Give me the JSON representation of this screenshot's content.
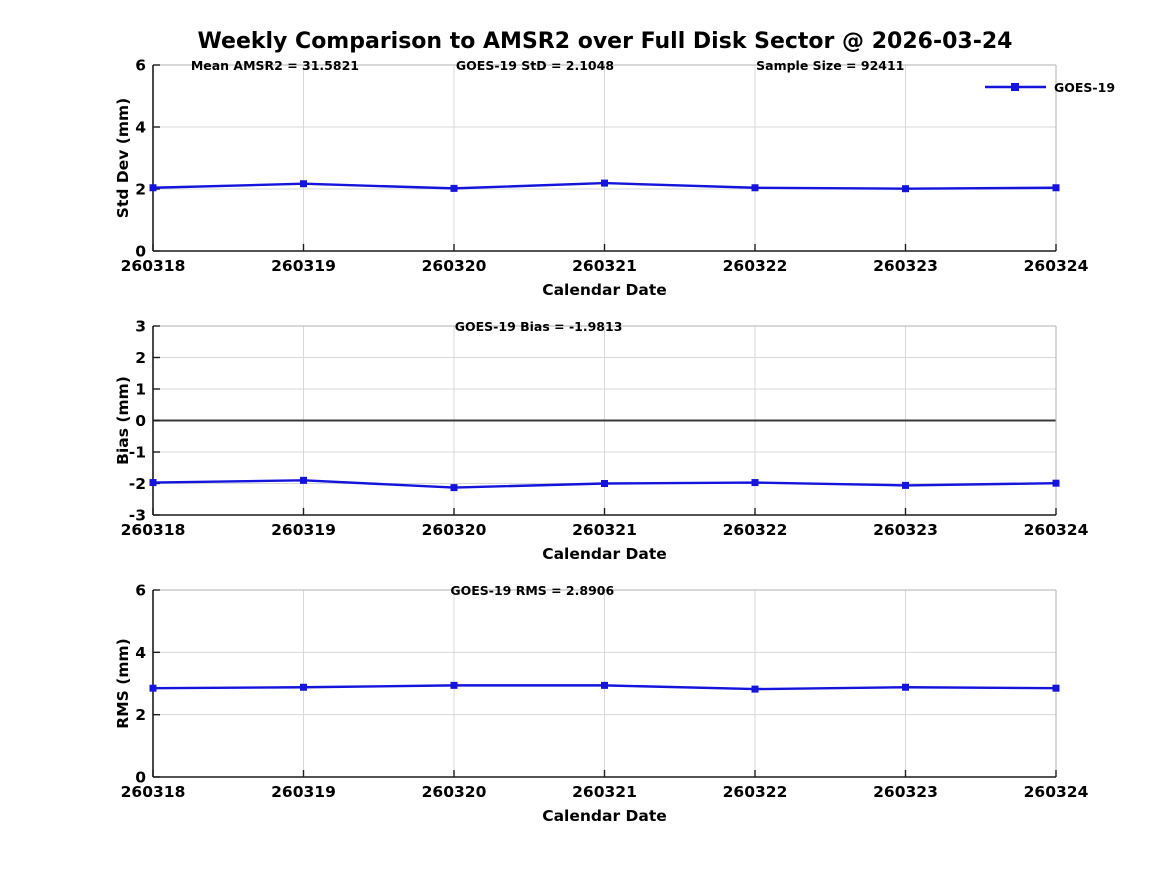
{
  "title": "Weekly Comparison to AMSR2 over Full Disk Sector @ 2026-03-24",
  "colors": {
    "series": "#1414dd",
    "grid": "#d8d8d8",
    "axis": "#1c1c1c",
    "box": "#b0b0b0",
    "zero_line": "#3a3a3a",
    "text": "#000000",
    "background": "#ffffff"
  },
  "chart_data": [
    {
      "type": "line",
      "name": "std-dev",
      "x": [
        "260318",
        "260319",
        "260320",
        "260321",
        "260322",
        "260323",
        "260324"
      ],
      "series": [
        {
          "name": "GOES-19",
          "values": [
            2.04,
            2.17,
            2.02,
            2.19,
            2.04,
            2.01,
            2.04
          ]
        }
      ],
      "xlabel": "Calendar Date",
      "ylabel": "Std Dev (mm)",
      "ylim": [
        0,
        6
      ],
      "yticks": [
        0,
        2,
        4,
        6
      ],
      "grid": true,
      "zero_line": false,
      "annotations": [
        {
          "text": "Mean AMSR2 = 31.5821",
          "fx": 0.135
        },
        {
          "text": "GOES-19 StD = 2.1048",
          "fx": 0.423
        },
        {
          "text": "Sample Size = 92411",
          "fx": 0.75
        }
      ],
      "legend": {
        "label": "GOES-19",
        "position": "top-right"
      }
    },
    {
      "type": "line",
      "name": "bias",
      "x": [
        "260318",
        "260319",
        "260320",
        "260321",
        "260322",
        "260323",
        "260324"
      ],
      "series": [
        {
          "name": "GOES-19",
          "values": [
            -1.97,
            -1.9,
            -2.13,
            -2.0,
            -1.97,
            -2.06,
            -1.99
          ]
        }
      ],
      "xlabel": "Calendar Date",
      "ylabel": "Bias (mm)",
      "ylim": [
        -3,
        3
      ],
      "yticks": [
        -3,
        -2,
        -1,
        0,
        1,
        2,
        3
      ],
      "grid": true,
      "zero_line": true,
      "annotations": [
        {
          "text": "GOES-19 Bias  = -1.9813",
          "fx": 0.427
        }
      ],
      "legend": null
    },
    {
      "type": "line",
      "name": "rms",
      "x": [
        "260318",
        "260319",
        "260320",
        "260321",
        "260322",
        "260323",
        "260324"
      ],
      "series": [
        {
          "name": "GOES-19",
          "values": [
            2.85,
            2.88,
            2.94,
            2.94,
            2.82,
            2.88,
            2.85
          ]
        }
      ],
      "xlabel": "Calendar Date",
      "ylabel": "RMS (mm)",
      "ylim": [
        0,
        6
      ],
      "yticks": [
        0,
        2,
        4,
        6
      ],
      "grid": true,
      "zero_line": false,
      "annotations": [
        {
          "text": "GOES-19 RMS = 2.8906",
          "fx": 0.42
        }
      ],
      "legend": null
    }
  ]
}
